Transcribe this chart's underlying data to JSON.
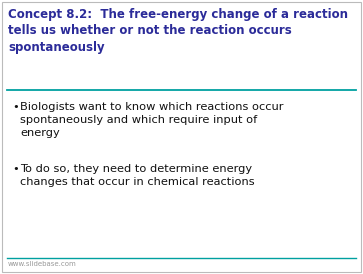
{
  "title_line1": "Concept 8.2:  The free-energy change of a reaction",
  "title_line2": "tells us whether or not the reaction occurs",
  "title_line3": "spontaneously",
  "title_color": "#2B2B99",
  "title_fontsize": 8.5,
  "bullet1_line1": "Biologists want to know which reactions occur",
  "bullet1_line2": "spontaneously and which require input of",
  "bullet1_line3": "energy",
  "bullet2_line1": "To do so, they need to determine energy",
  "bullet2_line2": "changes that occur in chemical reactions",
  "bullet_color": "#111111",
  "bullet_fontsize": 8.2,
  "background_color": "#FFFFFF",
  "border_color": "#BBBBBB",
  "divider_color": "#00A0A0",
  "footer_text": "www.slidebase.com",
  "footer_color": "#999999",
  "footer_fontsize": 5.0,
  "fig_width": 3.63,
  "fig_height": 2.74,
  "dpi": 100
}
